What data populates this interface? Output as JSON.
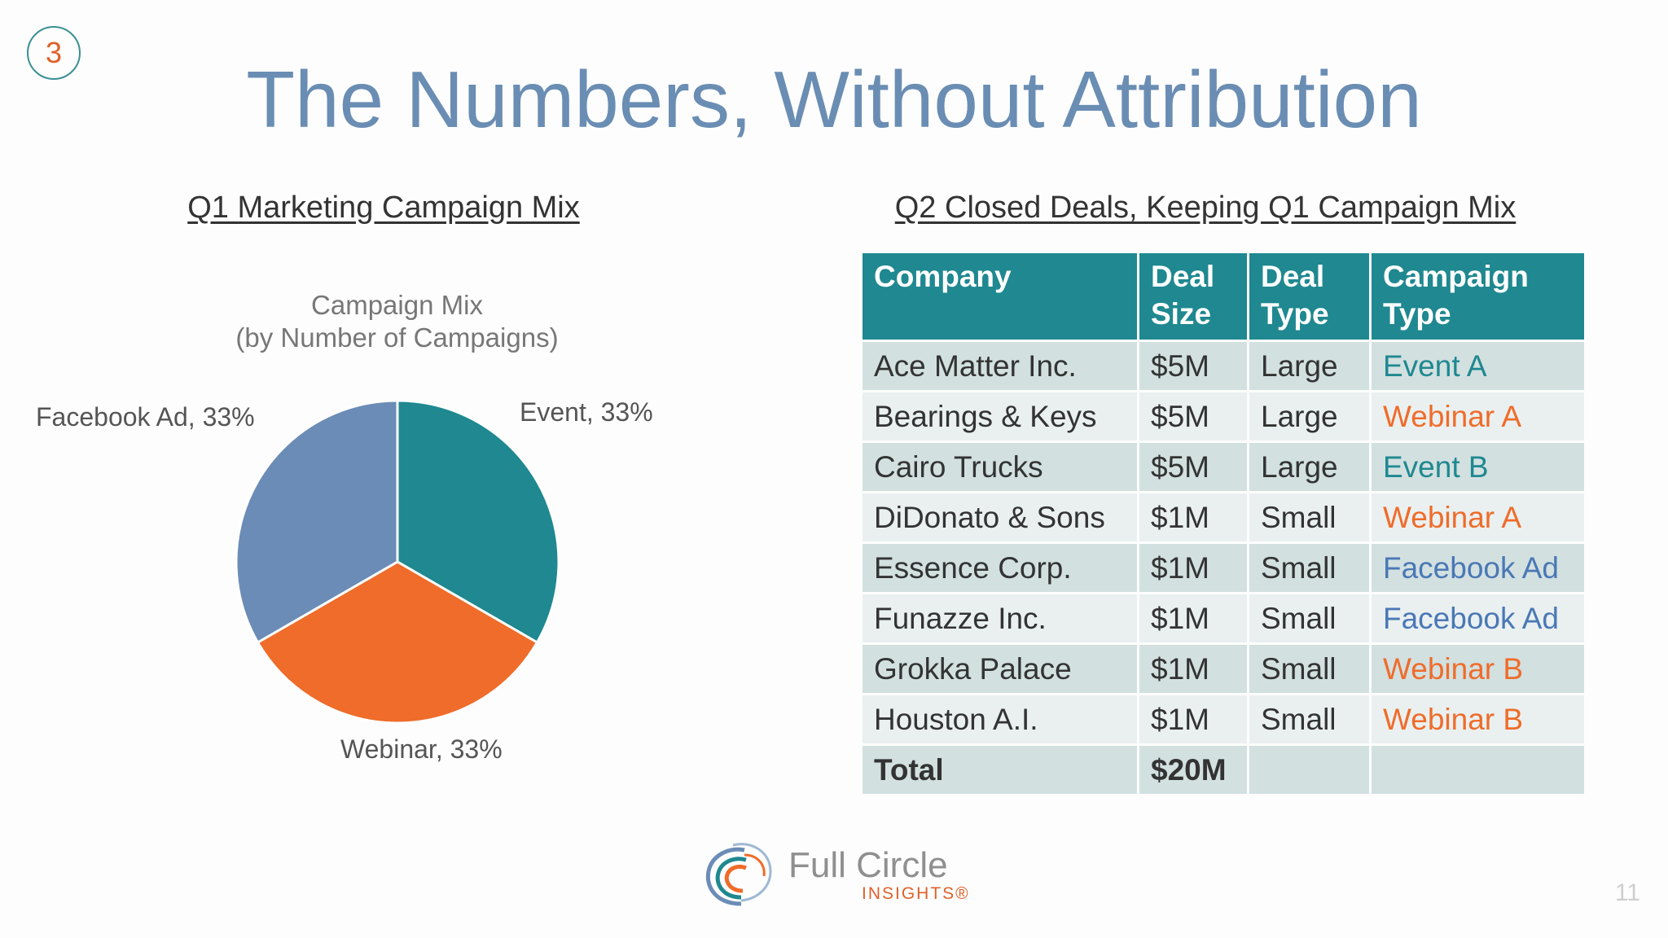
{
  "slide": {
    "step_number": "3",
    "title": "The Numbers, Without Attribution",
    "page_number": "11"
  },
  "pie_section": {
    "heading": "Q1 Marketing Campaign Mix",
    "chart_title_line1": "Campaign Mix",
    "chart_title_line2": "(by Number of Campaigns)"
  },
  "chart_data": {
    "type": "pie",
    "title": "Campaign Mix (by Number of Campaigns)",
    "slices": [
      {
        "label": "Event",
        "value": 33,
        "display": "Event, 33%",
        "color": "#1f8890"
      },
      {
        "label": "Webinar",
        "value": 33,
        "display": "Webinar, 33%",
        "color": "#ef6c2a"
      },
      {
        "label": "Facebook Ad",
        "value": 33,
        "display": "Facebook Ad, 33%",
        "color": "#6b8cb6"
      }
    ]
  },
  "table_section": {
    "heading": "Q2 Closed Deals, Keeping Q1 Campaign Mix",
    "columns": [
      {
        "line1": "Company",
        "line2": ""
      },
      {
        "line1": "Deal",
        "line2": "Size"
      },
      {
        "line1": "Deal",
        "line2": "Type"
      },
      {
        "line1": "Campaign",
        "line2": "Type"
      }
    ],
    "rows": [
      {
        "company": "Ace Matter Inc.",
        "size": "$5M",
        "type": "Large",
        "campaign": "Event A",
        "campaign_color": "#1f8890"
      },
      {
        "company": "Bearings & Keys",
        "size": "$5M",
        "type": "Large",
        "campaign": "Webinar A",
        "campaign_color": "#ef6c2a"
      },
      {
        "company": "Cairo Trucks",
        "size": "$5M",
        "type": "Large",
        "campaign": "Event B",
        "campaign_color": "#1f8890"
      },
      {
        "company": "DiDonato & Sons",
        "size": "$1M",
        "type": "Small",
        "campaign": "Webinar A",
        "campaign_color": "#ef6c2a"
      },
      {
        "company": "Essence Corp.",
        "size": "$1M",
        "type": "Small",
        "campaign": "Facebook Ad",
        "campaign_color": "#4a78b5"
      },
      {
        "company": "Funazze Inc.",
        "size": "$1M",
        "type": "Small",
        "campaign": "Facebook Ad",
        "campaign_color": "#4a78b5"
      },
      {
        "company": "Grokka Palace",
        "size": "$1M",
        "type": "Small",
        "campaign": "Webinar B",
        "campaign_color": "#ef6c2a"
      },
      {
        "company": "Houston A.I.",
        "size": "$1M",
        "type": "Small",
        "campaign": "Webinar B",
        "campaign_color": "#ef6c2a"
      }
    ],
    "total": {
      "label": "Total",
      "size": "$20M"
    }
  },
  "logo": {
    "name": "Full Circle",
    "sub": "INSIGHTS®"
  }
}
